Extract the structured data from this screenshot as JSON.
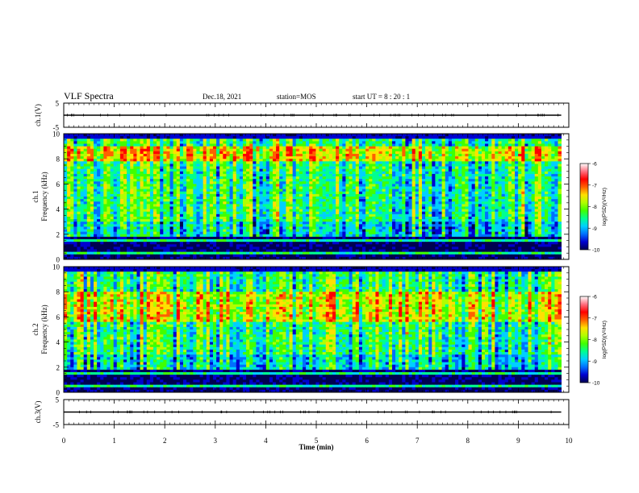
{
  "header": {
    "title": "VLF Spectra",
    "date": "Dec.18, 2021",
    "station": "station=MOS",
    "start_ut": "start  UT  =   8  : 20 : 1"
  },
  "colors": {
    "colormap": [
      "#000050",
      "#0000d0",
      "#0070ff",
      "#00d0ff",
      "#00ff90",
      "#40ff00",
      "#b0ff00",
      "#ffe000",
      "#ff6000",
      "#ff0000",
      "#ff7080",
      "#ffffff"
    ]
  },
  "chart_data": [
    {
      "type": "line",
      "panel": "ch1-waveform",
      "ylabel": "ch.1(V)",
      "ylim": [
        -5,
        5
      ],
      "yticks": [
        5,
        -5
      ],
      "x": [
        0,
        10
      ],
      "values": [
        0,
        0
      ]
    },
    {
      "type": "heatmap",
      "panel": "ch1-spectrogram",
      "ylabel": "ch.1\nFrequency (kHz)",
      "ylabel_line1": "ch.1",
      "ylabel_line2": "Frequency (kHz)",
      "ylim": [
        0,
        10
      ],
      "yticks": [
        0,
        2,
        4,
        6,
        8,
        10
      ],
      "xlim": [
        0,
        10
      ],
      "colorbar": {
        "label": "log(PSD)(V²/Hz)",
        "ticks": [
          -6,
          -7,
          -8,
          -9,
          -10
        ],
        "range": [
          -10,
          -6
        ]
      }
    },
    {
      "type": "heatmap",
      "panel": "ch2-spectrogram",
      "ylabel": "ch.2\nFrequency (kHz)",
      "ylabel_line1": "ch.2",
      "ylabel_line2": "Frequency (kHz)",
      "ylim": [
        0,
        10
      ],
      "yticks": [
        0,
        2,
        4,
        6,
        8,
        10
      ],
      "xlim": [
        0,
        10
      ],
      "colorbar": {
        "label": "log(PSD)(V²/Hz)",
        "ticks": [
          -6,
          -7,
          -8,
          -9,
          -10
        ],
        "range": [
          -10,
          -6
        ]
      }
    },
    {
      "type": "line",
      "panel": "ch3-waveform",
      "ylabel": "ch.3(V)",
      "ylim": [
        -5,
        5
      ],
      "yticks": [
        5,
        -5
      ],
      "x": [
        0,
        10
      ],
      "values": [
        0,
        0
      ]
    }
  ],
  "xaxis": {
    "label": "Time  (min)",
    "ticks": [
      "0",
      "1",
      "2",
      "3",
      "4",
      "5",
      "6",
      "7",
      "8",
      "9",
      "10"
    ],
    "range": [
      0,
      10
    ],
    "data_end": 9.85
  }
}
